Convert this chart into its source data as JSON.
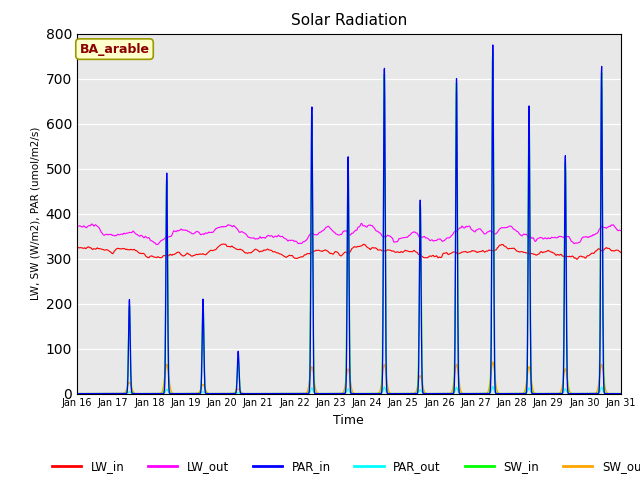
{
  "title": "Solar Radiation",
  "ylabel": "LW, SW (W/m2), PAR (umol/m2/s)",
  "xlabel": "Time",
  "ylim": [
    0,
    800
  ],
  "yticks": [
    0,
    100,
    200,
    300,
    400,
    500,
    600,
    700,
    800
  ],
  "xtick_labels": [
    "Jan 16",
    "Jan 17",
    "Jan 18",
    "Jan 19",
    "Jan 20",
    "Jan 21",
    "Jan 22",
    "Jan 23",
    "Jan 24",
    "Jan 25",
    "Jan 26",
    "Jan 27",
    "Jan 28",
    "Jan 29",
    "Jan 30",
    "Jan 31"
  ],
  "annotation_text": "BA_arable",
  "annotation_bg": "#ffffcc",
  "annotation_fg": "#8b0000",
  "background_color": "#e8e8e8",
  "line_colors": {
    "LW_in": "#ff0000",
    "LW_out": "#ff00ff",
    "PAR_in": "#0000ff",
    "PAR_out": "#00ffff",
    "SW_in": "#00ff00",
    "SW_out": "#ffa500"
  },
  "legend_labels": [
    "LW_in",
    "LW_out",
    "PAR_in",
    "PAR_out",
    "SW_in",
    "SW_out"
  ],
  "peak_days": [
    1.45,
    2.48,
    3.48,
    4.45,
    6.48,
    7.48,
    8.48,
    9.47,
    10.47,
    11.47,
    12.47,
    13.47,
    14.47
  ],
  "par_in_amps": [
    210,
    490,
    210,
    95,
    640,
    530,
    730,
    430,
    700,
    775,
    640,
    530,
    730
  ],
  "sw_in_amps": [
    195,
    475,
    200,
    80,
    625,
    520,
    715,
    420,
    690,
    760,
    625,
    515,
    715
  ],
  "sw_out_amps": [
    25,
    65,
    20,
    10,
    60,
    55,
    65,
    40,
    65,
    70,
    60,
    55,
    65
  ],
  "lw_in_base": 315,
  "lw_out_base": 355
}
